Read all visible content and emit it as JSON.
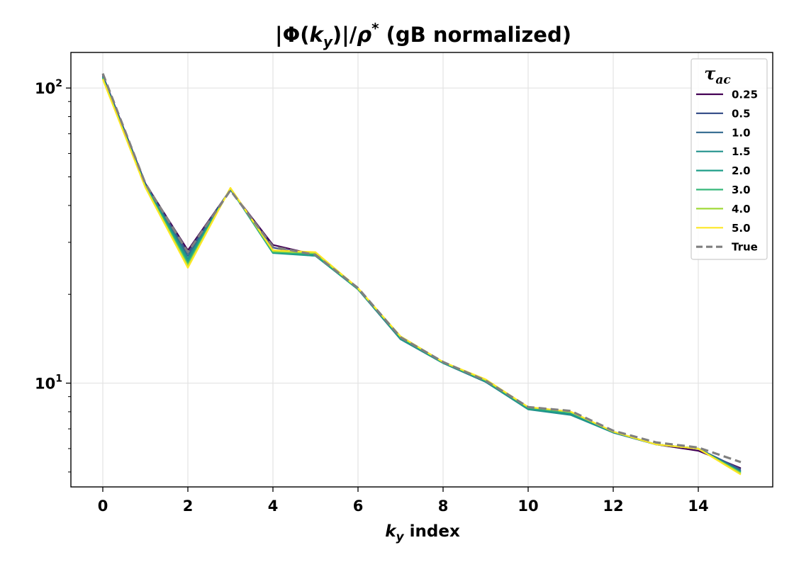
{
  "chart_data": {
    "type": "line",
    "title": "|Φ(k_y)|/ρ*  (gB normalized)",
    "title_parts": {
      "pre": "|Φ(",
      "k": "k",
      "sub_y": "y",
      "mid": ")|/",
      "rho": "ρ",
      "sup_star": "*",
      "post": "  (gB normalized)"
    },
    "xlabel": "k_y index",
    "xlabel_parts": {
      "k": "k",
      "sub_y": "y",
      "post": " index"
    },
    "ylabel": "",
    "yscale": "log",
    "xlim": [
      -0.75,
      15.75
    ],
    "ylim": [
      4.45,
      132
    ],
    "grid": true,
    "xticks": [
      0,
      2,
      4,
      6,
      8,
      10,
      12,
      14
    ],
    "xtick_labels": [
      "0",
      "2",
      "4",
      "6",
      "8",
      "10",
      "12",
      "14"
    ],
    "yticks": [
      10,
      100
    ],
    "ytick_labels": [
      {
        "base": "10",
        "exp": "1"
      },
      {
        "base": "10",
        "exp": "2"
      }
    ],
    "legend": {
      "title": "τac",
      "title_parts": {
        "main": "τ",
        "sub": "ac"
      },
      "placement": "upper right"
    },
    "x": [
      0,
      1,
      2,
      3,
      4,
      5,
      6,
      7,
      8,
      9,
      10,
      11,
      12,
      13,
      14,
      15
    ],
    "series": [
      {
        "name": "0.25",
        "color": "#440154",
        "dashed": false,
        "values": [
          110.5,
          47.5,
          28.2,
          45.2,
          29.4,
          27.2,
          20.8,
          14.1,
          11.7,
          10.1,
          8.2,
          7.9,
          6.8,
          6.2,
          5.9,
          5.15
        ]
      },
      {
        "name": "0.5",
        "color": "#3b528b",
        "dashed": false,
        "values": [
          110,
          47.2,
          27.6,
          45.3,
          28.8,
          27.1,
          20.8,
          14.1,
          11.7,
          10.1,
          8.2,
          7.9,
          6.8,
          6.2,
          6.0,
          5.1
        ]
      },
      {
        "name": "1.0",
        "color": "#31688e",
        "dashed": false,
        "values": [
          109.5,
          47,
          27.0,
          45.4,
          28.2,
          27.1,
          20.8,
          14.1,
          11.7,
          10.1,
          8.2,
          7.85,
          6.8,
          6.2,
          6.0,
          5.05
        ]
      },
      {
        "name": "1.5",
        "color": "#21918c",
        "dashed": false,
        "values": [
          109,
          46.8,
          26.4,
          45.5,
          27.8,
          27.0,
          20.8,
          14.1,
          11.7,
          10.1,
          8.15,
          7.8,
          6.8,
          6.2,
          6.0,
          5.0
        ]
      },
      {
        "name": "2.0",
        "color": "#1f9e89",
        "dashed": false,
        "values": [
          108.5,
          46.6,
          25.9,
          45.6,
          27.6,
          27.0,
          20.8,
          14.2,
          11.7,
          10.2,
          8.2,
          7.9,
          6.85,
          6.2,
          6.0,
          5.0
        ]
      },
      {
        "name": "3.0",
        "color": "#35b779",
        "dashed": false,
        "values": [
          108,
          46.4,
          25.4,
          45.7,
          27.8,
          27.4,
          20.9,
          14.3,
          11.75,
          10.2,
          8.25,
          7.95,
          6.85,
          6.2,
          6.0,
          4.95
        ]
      },
      {
        "name": "4.0",
        "color": "#a0da39",
        "dashed": false,
        "values": [
          107.5,
          46.2,
          25.0,
          45.8,
          28.0,
          27.6,
          20.9,
          14.4,
          11.8,
          10.25,
          8.3,
          8.0,
          6.85,
          6.2,
          6.0,
          4.95
        ]
      },
      {
        "name": "5.0",
        "color": "#fde725",
        "dashed": false,
        "values": [
          107,
          46.0,
          24.6,
          45.9,
          28.2,
          27.8,
          21.0,
          14.4,
          11.8,
          10.3,
          8.3,
          8.0,
          6.85,
          6.2,
          6.0,
          4.9
        ]
      },
      {
        "name": "True",
        "color": "#808080",
        "dashed": true,
        "values": [
          112,
          47.5,
          27.8,
          45.0,
          29.0,
          27.2,
          21.0,
          14.3,
          11.8,
          10.2,
          8.3,
          8.05,
          6.9,
          6.3,
          6.05,
          5.4
        ]
      }
    ]
  }
}
